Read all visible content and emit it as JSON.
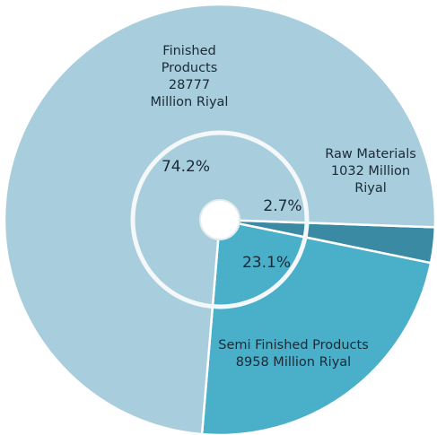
{
  "chart_data": {
    "type": "pie",
    "style": "donut with inner ring and center hole",
    "slices": [
      {
        "category": "Finished Products",
        "value": 28777,
        "percent_label": "74.2%",
        "label_lines": [
          "Finished",
          "Products",
          "28777",
          "Million Riyal"
        ],
        "color": "#a8cddc"
      },
      {
        "category": "Raw Materials",
        "value": 1032,
        "percent_label": "2.7%",
        "label_lines": [
          "Raw Materials",
          "1032 Million",
          "Riyal"
        ],
        "color": "#3b8aa3"
      },
      {
        "category": "Semi Finished Products",
        "value": 8958,
        "percent_label": "23.1%",
        "label_lines": [
          "Semi Finished Products",
          "8958 Million Riyal"
        ],
        "color": "#4aafc8"
      }
    ],
    "colors": {
      "background": "#ffffff",
      "ring": "#f4f8fa",
      "center_hole": "#ffffff",
      "text": "#1a2a36"
    }
  }
}
